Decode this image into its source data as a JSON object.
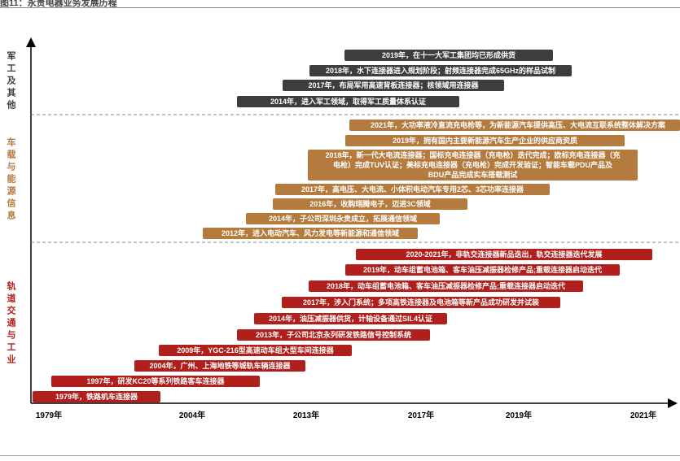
{
  "header": {
    "title": "图11：永贵电器业务发展历程"
  },
  "colors": {
    "military": "#3d3d3d",
    "vehicle": "#b57a3e",
    "rail": "#b01f1c",
    "axis": "#000000",
    "divider": "#888888"
  },
  "chart_data": {
    "type": "timeline",
    "title": "",
    "xlabel": "",
    "ylabel": "",
    "x_ticks": [
      "1979年",
      "2004年",
      "2013年",
      "2017年",
      "2019年",
      "2021年"
    ],
    "groups": [
      {
        "name": "军工及其他",
        "color_key": "military",
        "events": [
          {
            "start": "2014年",
            "text": "2014年，进入军工领域，取得军工质量体系认证"
          },
          {
            "start": "2017年",
            "text": "2017年，布局军用高速背板连接器；核领域用连接器"
          },
          {
            "start": "2018年",
            "text": "2018年，水下连接器进入规划阶段；射频连接器完成65GHz的样品试制"
          },
          {
            "start": "2019年",
            "text": "2019年，在十一大军工集团均已形成供货"
          }
        ]
      },
      {
        "name": "车载与能源信息",
        "color_key": "vehicle",
        "events": [
          {
            "start": "2012年",
            "text": "2012年，进入电动汽车、风力发电等新能源和通信领域"
          },
          {
            "start": "2014年",
            "text": "2014年，子公司深圳永贵成立，拓展通信领域"
          },
          {
            "start": "2016年",
            "text": "2016年，收购翊腾电子，迈进3C领域"
          },
          {
            "start": "2017年",
            "text": "2017年，高电压、大电流、小体积电动汽车专用2芯、3芯功率连接器"
          },
          {
            "start": "2018年",
            "text": "2018年，新一代大电流连接器；国标充电连接器（充电枪）迭代完成；欧标充电连接器（充电枪）完成TUV认证；美标充电连接器（充电枪）完成开发验证；智能车载PDU产品及BDU产品完成实车搭载测试"
          },
          {
            "start": "2019年",
            "text": "2019年，拥有国内主要新能源汽车生产企业的供应商资质"
          },
          {
            "start": "2021年",
            "text": "2021年，大功率液冷直流充电枪等，为新能源汽车提供高压、大电流互联系统整体解决方案"
          }
        ]
      },
      {
        "name": "轨道交通与工业",
        "color_key": "rail",
        "events": [
          {
            "start": "1979年",
            "text": "1979年，铁路机车连接器"
          },
          {
            "start": "1997年",
            "text": "1997年，研发KC20等系列铁路客车连接器"
          },
          {
            "start": "2004年",
            "text": "2004年，广州、上海地铁等城轨车辆连接器"
          },
          {
            "start": "2009年",
            "text": "2009年，YGC-216型高速动车组大型车间连接器"
          },
          {
            "start": "2013年",
            "text": "2013年，子公司北京永列研发铁路信号控制系统"
          },
          {
            "start": "2014年",
            "text": "2014年，油压减振器供货，计轴设备通过SIL4认证"
          },
          {
            "start": "2017年",
            "text": "2017年，涉入门系统；多项高铁连接器及电池箱等新产品成功研发并试装"
          },
          {
            "start": "2018年",
            "text": "2018年，动车组蓄电池箱、客车油压减振器检修产品;重载连接器启动迭代"
          },
          {
            "start": "2019年",
            "text": "2019年，动车组蓄电池箱、客车油压减振器检修产品;重载连接器启动迭代"
          },
          {
            "start": "2020-2021年",
            "text": "2020-2021年，非轨交连接器新品迭出，轨交连接器迭代发展"
          }
        ]
      }
    ]
  }
}
